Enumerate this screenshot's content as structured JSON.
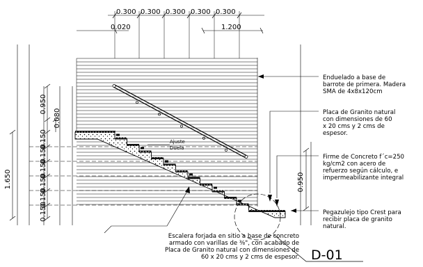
{
  "dimensions": {
    "top_steps": [
      "0.300",
      "0.300",
      "0.300",
      "0.300",
      "0.300"
    ],
    "second_row_left": "0.020",
    "second_row_right": "1.200",
    "rail_height_outer": "0.950",
    "rail_height_inner": "0.080",
    "riser_left": [
      "0.150",
      "0.150",
      "0.150",
      "0.150",
      "0.150",
      "0.150"
    ],
    "total_height": "1.650",
    "rail_height_right": "0.950"
  },
  "labels": {
    "adjust": "Ajuste",
    "duela": "Duela"
  },
  "notes": {
    "enduelado": [
      "Enduelado a base de",
      "barrote de primera. Madera",
      "SMA de 4x8x120cm"
    ],
    "placa": [
      "Placa de Granito natural",
      "con dimensiones de 60",
      "x 20 cms y 2 cms de",
      "espesor."
    ],
    "firme": [
      "Firme de Concreto f´c=250",
      "kg/cm2 con acero de",
      "refuerzo según cálculo, e",
      "impermeabilizante integral"
    ],
    "pegazulejo": [
      "Pegazulejo tipo Crest para",
      "recibir placa de granito",
      "natural."
    ],
    "escalera": [
      "Escalera forjada en sitio a base de concreto",
      "armado con varillas de ⅜\", con acabado de",
      "Placa de Granito natural con dimensiones de",
      "60 x 20 cms y 2 cms de espesor."
    ]
  },
  "detail_tag": "D-01"
}
